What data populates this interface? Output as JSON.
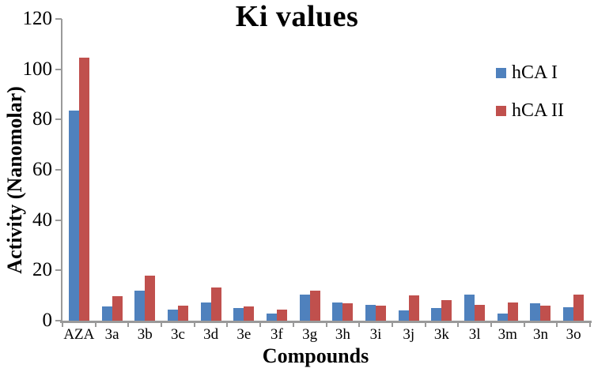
{
  "chart_data": {
    "type": "bar",
    "title": "Ki values",
    "xlabel": "Compounds",
    "ylabel": "Activity (Nanomolar)",
    "ylim": [
      0,
      120
    ],
    "yticks": [
      0,
      20,
      40,
      60,
      80,
      100,
      120
    ],
    "grid": false,
    "legend_position": "upper-right",
    "categories": [
      "AZA",
      "3a",
      "3b",
      "3c",
      "3d",
      "3e",
      "3f",
      "3g",
      "3h",
      "3i",
      "3j",
      "3k",
      "3l",
      "3m",
      "3n",
      "3o"
    ],
    "series": [
      {
        "name": "hCA I",
        "color": "#4F81BD",
        "values": [
          83.5,
          5.7,
          11.8,
          4.5,
          7.1,
          4.9,
          2.9,
          10.5,
          7.3,
          6.3,
          4.0,
          5.0,
          10.3,
          2.7,
          6.8,
          5.2
        ]
      },
      {
        "name": "hCA II",
        "color": "#C0504D",
        "values": [
          104.6,
          9.7,
          17.8,
          5.9,
          13.2,
          5.6,
          4.4,
          11.8,
          7.0,
          6.1,
          10.0,
          8.2,
          6.3,
          7.1,
          6.1,
          10.5
        ]
      }
    ]
  },
  "colors": {
    "axis": "#9a9a9a",
    "text": "#000000",
    "background": "#ffffff",
    "series_blue": "#4F81BD",
    "series_red": "#C0504D"
  }
}
